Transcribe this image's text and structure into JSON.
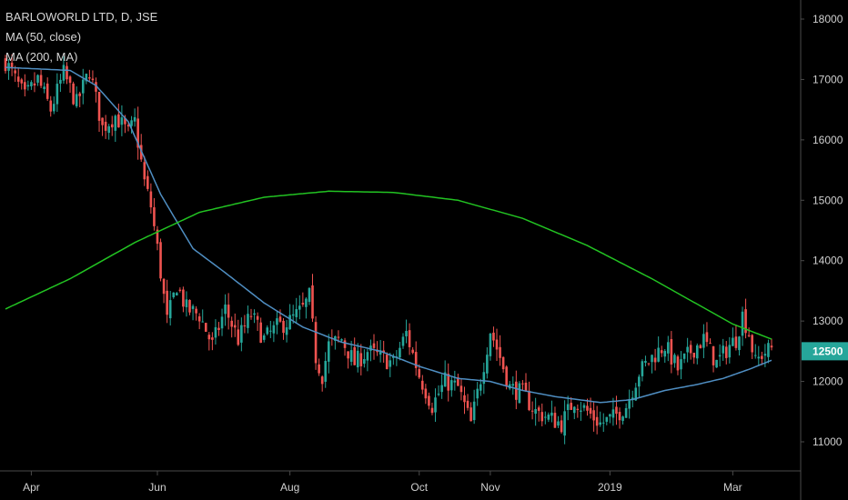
{
  "legend": {
    "title": "BARLOWORLD LTD, D, JSE",
    "ma50": "MA (50, close)",
    "ma200": "MA (200, MA)"
  },
  "colors": {
    "background": "#000000",
    "up": "#26a69a",
    "down": "#ef5350",
    "ma50": "#4f8ec2",
    "ma200": "#22c322",
    "axis_line": "#4a4a4a",
    "price_tag": "#26a69a"
  },
  "chart_data": {
    "type": "candlestick",
    "title": "BARLOWORLD LTD, D, JSE",
    "y_axis_position": "right",
    "ylim": [
      10800,
      18400
    ],
    "y_ticks": [
      11000,
      12000,
      12500,
      13000,
      14000,
      15000,
      16000,
      17000,
      18000
    ],
    "x_ticks": [
      "Apr",
      "Jun",
      "Aug",
      "Oct",
      "Nov",
      "2019",
      "Mar"
    ],
    "last_price": 12500,
    "price_path": [
      [
        0,
        17300
      ],
      [
        6,
        16700
      ],
      [
        10,
        17000
      ],
      [
        14,
        16500
      ],
      [
        18,
        17100
      ],
      [
        22,
        16600
      ],
      [
        26,
        17150
      ],
      [
        30,
        16200
      ],
      [
        34,
        16400
      ],
      [
        38,
        16100
      ],
      [
        40,
        16300
      ],
      [
        43,
        15300
      ],
      [
        45,
        14900
      ],
      [
        47,
        14200
      ],
      [
        50,
        13000
      ],
      [
        53,
        13600
      ],
      [
        56,
        13200
      ],
      [
        60,
        13100
      ],
      [
        64,
        12600
      ],
      [
        68,
        13200
      ],
      [
        72,
        12700
      ],
      [
        76,
        13100
      ],
      [
        80,
        12700
      ],
      [
        84,
        12900
      ],
      [
        88,
        13000
      ],
      [
        92,
        13200
      ],
      [
        94,
        13400
      ],
      [
        96,
        12400
      ],
      [
        98,
        12100
      ],
      [
        100,
        12600
      ],
      [
        104,
        12700
      ],
      [
        108,
        12300
      ],
      [
        112,
        12500
      ],
      [
        116,
        12400
      ],
      [
        120,
        12300
      ],
      [
        124,
        12800
      ],
      [
        128,
        12100
      ],
      [
        132,
        11600
      ],
      [
        136,
        12000
      ],
      [
        140,
        11900
      ],
      [
        144,
        11300
      ],
      [
        148,
        12300
      ],
      [
        150,
        12850
      ],
      [
        153,
        12400
      ],
      [
        156,
        11900
      ],
      [
        160,
        11800
      ],
      [
        164,
        11500
      ],
      [
        168,
        11400
      ],
      [
        172,
        11300
      ],
      [
        176,
        11700
      ],
      [
        180,
        11500
      ],
      [
        184,
        11300
      ],
      [
        188,
        11400
      ],
      [
        192,
        11600
      ],
      [
        196,
        12150
      ],
      [
        200,
        12400
      ],
      [
        204,
        12600
      ],
      [
        208,
        12200
      ],
      [
        212,
        12500
      ],
      [
        216,
        12700
      ],
      [
        220,
        12300
      ],
      [
        224,
        12600
      ],
      [
        226,
        12700
      ],
      [
        228,
        13100
      ],
      [
        230,
        12800
      ],
      [
        232,
        12300
      ],
      [
        234,
        12450
      ],
      [
        237,
        12550
      ]
    ],
    "ma50_path": [
      [
        0,
        17200
      ],
      [
        20,
        17150
      ],
      [
        28,
        16900
      ],
      [
        38,
        16300
      ],
      [
        48,
        15100
      ],
      [
        58,
        14200
      ],
      [
        68,
        13800
      ],
      [
        80,
        13300
      ],
      [
        92,
        12900
      ],
      [
        104,
        12650
      ],
      [
        116,
        12500
      ],
      [
        128,
        12250
      ],
      [
        140,
        12050
      ],
      [
        150,
        12000
      ],
      [
        160,
        11850
      ],
      [
        170,
        11750
      ],
      [
        184,
        11650
      ],
      [
        194,
        11700
      ],
      [
        204,
        11850
      ],
      [
        214,
        11950
      ],
      [
        222,
        12050
      ],
      [
        230,
        12200
      ],
      [
        237,
        12350
      ]
    ],
    "ma200_path": [
      [
        0,
        13200
      ],
      [
        20,
        13700
      ],
      [
        40,
        14300
      ],
      [
        60,
        14800
      ],
      [
        80,
        15050
      ],
      [
        100,
        15150
      ],
      [
        120,
        15130
      ],
      [
        140,
        15000
      ],
      [
        160,
        14700
      ],
      [
        180,
        14250
      ],
      [
        200,
        13700
      ],
      [
        215,
        13250
      ],
      [
        225,
        12950
      ],
      [
        237,
        12700
      ]
    ]
  }
}
